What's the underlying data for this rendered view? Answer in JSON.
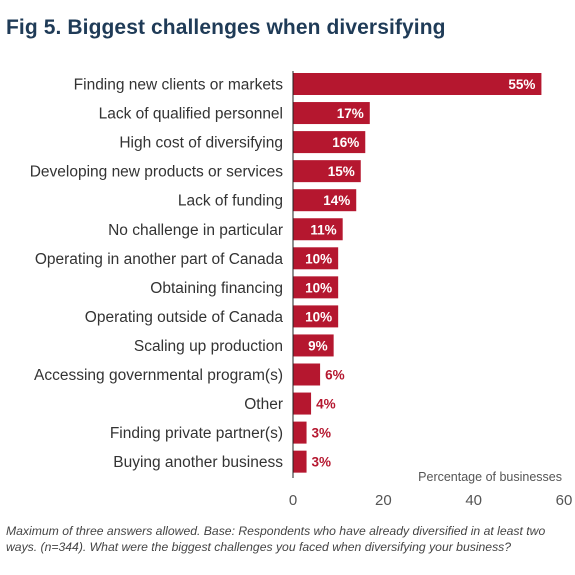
{
  "figure": {
    "title": "Fig 5. Biggest challenges when diversifying",
    "footnote": "Maximum of three answers allowed. Base: Respondents who have already diversified in at least two ways. (n=344). What were the biggest challenges you faced when diversifying your business?"
  },
  "colors": {
    "bar": "#b5172f",
    "title": "#1f3b57",
    "label_inside": "#ffffff",
    "label_outside": "#b5172f",
    "category_text": "#333333",
    "axis_text": "#555555",
    "axis_line": "#222222"
  },
  "chart_data": {
    "type": "bar",
    "orientation": "horizontal",
    "title": "Fig 5. Biggest challenges when diversifying",
    "xlabel": "Percentage of businesses",
    "ylabel": "",
    "xlim": [
      0,
      60
    ],
    "xticks": [
      0,
      20,
      40,
      60
    ],
    "grid": false,
    "categories": [
      "Finding new clients or markets",
      "Lack of qualified personnel",
      "High cost of diversifying",
      "Developing new products or services",
      "Lack of funding",
      "No challenge in particular",
      "Operating in another part of Canada",
      "Obtaining financing",
      "Operating outside of Canada",
      "Scaling up production",
      "Accessing governmental program(s)",
      "Other",
      "Finding private partner(s)",
      "Buying another business"
    ],
    "values": [
      55,
      17,
      16,
      15,
      14,
      11,
      10,
      10,
      10,
      9,
      6,
      4,
      3,
      3
    ],
    "data_labels": [
      "55%",
      "17%",
      "16%",
      "15%",
      "14%",
      "11%",
      "10%",
      "10%",
      "10%",
      "9%",
      "6%",
      "4%",
      "3%",
      "3%"
    ]
  }
}
